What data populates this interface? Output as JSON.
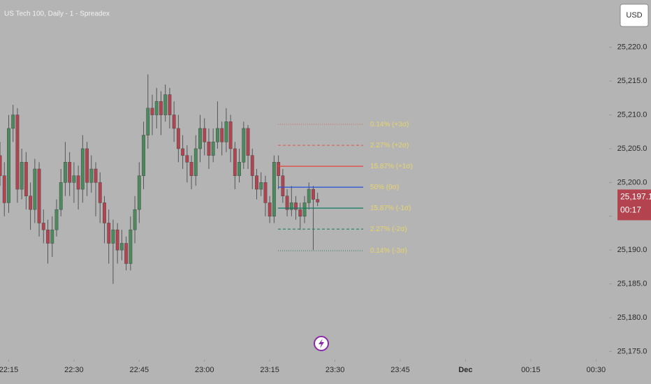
{
  "chart_data": {
    "type": "candlestick",
    "title": "US Tech 100, Daily - 1 - Spreadex",
    "currency": "USD",
    "x": [
      "22:13",
      "22:14",
      "22:15",
      "22:16",
      "22:17",
      "22:18",
      "22:19",
      "22:20",
      "22:21",
      "22:22",
      "22:23",
      "22:24",
      "22:25",
      "22:26",
      "22:27",
      "22:28",
      "22:29",
      "22:30",
      "22:31",
      "22:32",
      "22:33",
      "22:34",
      "22:35",
      "22:36",
      "22:37",
      "22:38",
      "22:39",
      "22:40",
      "22:41",
      "22:42",
      "22:43",
      "22:44",
      "22:45",
      "22:46",
      "22:47",
      "22:48",
      "22:49",
      "22:50",
      "22:51",
      "22:52",
      "22:53",
      "22:54",
      "22:55",
      "22:56",
      "22:57",
      "22:58",
      "22:59",
      "23:00",
      "23:01",
      "23:02",
      "23:03",
      "23:04",
      "23:05",
      "23:06",
      "23:07",
      "23:08",
      "23:09",
      "23:10",
      "23:11",
      "23:12",
      "23:13",
      "23:14",
      "23:15",
      "23:16",
      "23:17",
      "23:18",
      "23:19",
      "23:20",
      "23:21",
      "23:22",
      "23:23",
      "23:24",
      "23:25",
      "23:26"
    ],
    "open": [
      25204,
      25201,
      25197,
      25208,
      25210,
      25199,
      25203,
      25198,
      25196,
      25202,
      25194,
      25193,
      25191,
      25193,
      25196,
      25200,
      25203,
      25200,
      25201,
      25199,
      25205,
      25200,
      25202,
      25200,
      25197,
      25194,
      25191,
      25193,
      25190,
      25191,
      25188,
      25193,
      25196,
      25201,
      25207,
      25211,
      25210,
      25212,
      25210,
      25213,
      25210,
      25208,
      25205,
      25204,
      25203,
      25201,
      25205,
      25208,
      25206,
      25204,
      25206,
      25208,
      25206,
      25209,
      25205,
      25201,
      25203,
      25208,
      25204,
      25201,
      25199,
      25200,
      25197,
      25195,
      25203,
      25201,
      25198,
      25196,
      25197,
      25196,
      25195,
      25197,
      25199,
      25197.5
    ],
    "high": [
      25206,
      25203,
      25210,
      25211.5,
      25211,
      25205,
      25204.5,
      25200,
      25203.5,
      25203,
      25196,
      25194.5,
      25195,
      25197.5,
      25202,
      25206,
      25204.5,
      25203,
      25202.5,
      25207,
      25206,
      25204,
      25203,
      25201.5,
      25198,
      25196,
      25194.5,
      25194,
      25193,
      25192,
      25195,
      25198,
      25203,
      25209,
      25216,
      25213,
      25214,
      25213.5,
      25214.5,
      25214,
      25212,
      25210,
      25207,
      25205.5,
      25204,
      25207,
      25210,
      25209.5,
      25208,
      25208,
      25212,
      25209,
      25211,
      25210,
      25206,
      25205,
      25209,
      25208.5,
      25205,
      25202,
      25201.5,
      25201,
      25198,
      25204,
      25204,
      25202,
      25199,
      25199.5,
      25198,
      25197,
      25198,
      25200,
      25199.5,
      25198.5
    ],
    "low": [
      25199.5,
      25195,
      25195.5,
      25206,
      25197,
      25197.5,
      25196,
      25193,
      25194,
      25192,
      25191,
      25188,
      25189,
      25192,
      25195,
      25198,
      25198,
      25197,
      25196,
      25197,
      25198,
      25198.5,
      25195,
      25194,
      25191,
      25188,
      25185,
      25188,
      25188.5,
      25187,
      25187,
      25191,
      25194,
      25199,
      25205,
      25207,
      25208,
      25207,
      25209,
      25208,
      25206,
      25203,
      25202,
      25200,
      25199,
      25199.5,
      25203,
      25204,
      25202,
      25203,
      25205,
      25204,
      25204.5,
      25203,
      25199,
      25200,
      25202,
      25202,
      25199,
      25197.5,
      25198,
      25195,
      25194,
      25194,
      25199,
      25197,
      25195,
      25195,
      25194.5,
      25193,
      25194,
      25196,
      25190,
      25196.5
    ],
    "close": [
      25201,
      25197,
      25208,
      25210,
      25199,
      25203,
      25198,
      25196,
      25202,
      25194,
      25193,
      25191,
      25193,
      25196,
      25200,
      25203,
      25200,
      25201,
      25199,
      25205,
      25200,
      25202,
      25200,
      25197,
      25194,
      25191,
      25193,
      25190,
      25191,
      25188,
      25193,
      25196,
      25201,
      25207,
      25211,
      25210,
      25212,
      25210,
      25213,
      25210,
      25208,
      25205,
      25204,
      25203,
      25201,
      25205,
      25208,
      25206,
      25204,
      25206,
      25208,
      25206,
      25209,
      25205,
      25201,
      25203,
      25208,
      25204,
      25201,
      25199,
      25200,
      25197,
      25195,
      25203,
      25201,
      25198,
      25196,
      25197,
      25196,
      25195,
      25197,
      25199,
      25197.5,
      25197.1
    ],
    "up_color": "#4a8a5c",
    "down_color": "#b2434f",
    "xlim": [
      "22:13",
      "00:33"
    ],
    "xticks": [
      "22:15",
      "22:30",
      "22:45",
      "23:00",
      "23:15",
      "23:30",
      "23:45",
      {
        "value": "00:00",
        "label": "Dec"
      },
      "00:15",
      "00:30"
    ],
    "ylim": [
      25173.8,
      25227
    ],
    "yticks": [
      {
        "value": 25175,
        "label": "25,175.0"
      },
      {
        "value": 25180,
        "label": "25,180.0"
      },
      {
        "value": 25185,
        "label": "25,185.0"
      },
      {
        "value": 25190,
        "label": "25,190.0"
      },
      {
        "value": 25195,
        "label": "25,195.0"
      },
      {
        "value": 25200,
        "label": "25,200.0"
      },
      {
        "value": 25205,
        "label": "25,205.0"
      },
      {
        "value": 25210,
        "label": "25,210.0"
      },
      {
        "value": 25215,
        "label": "25,215.0"
      },
      {
        "value": 25220,
        "label": "25,220.0"
      }
    ],
    "levels": [
      {
        "label": "0.14% (+3σ)",
        "value": 25208.6,
        "color": "#d9665c",
        "style": "dotted"
      },
      {
        "label": "2.27% (+2σ)",
        "value": 25205.5,
        "color": "#e0574c",
        "style": "dashed"
      },
      {
        "label": "15.87% (+1σ)",
        "value": 25202.4,
        "color": "#e0443c",
        "style": "solid"
      },
      {
        "label": "50% (0σ)",
        "value": 25199.3,
        "color": "#2450d8",
        "style": "solid"
      },
      {
        "label": "15.87% (-1σ)",
        "value": 25196.2,
        "color": "#0f7a62",
        "style": "solid"
      },
      {
        "label": "2.27% (-2σ)",
        "value": 25193.1,
        "color": "#0f7a62",
        "style": "dashed"
      },
      {
        "label": "0.14% (-3σ)",
        "value": 25189.9,
        "color": "#2f7a5a",
        "style": "dotted"
      }
    ],
    "last_price": {
      "value": 25197.1,
      "label": "25,197.1"
    },
    "countdown": "00:17"
  }
}
